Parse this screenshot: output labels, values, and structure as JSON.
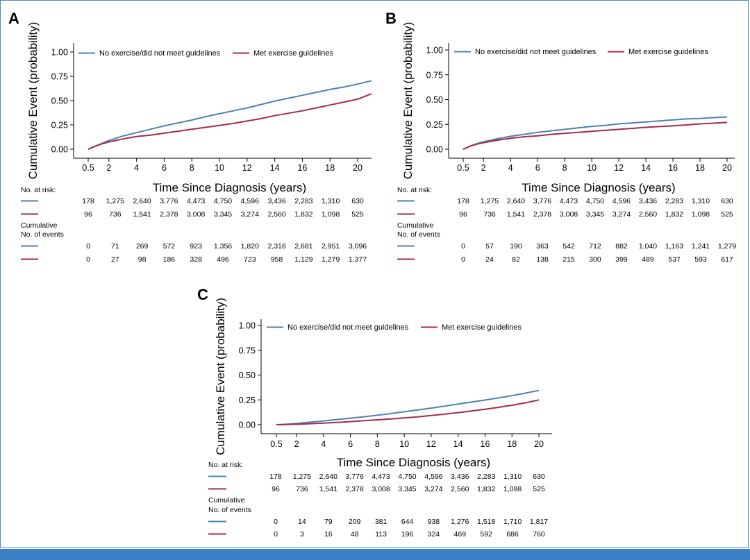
{
  "colors": {
    "series1": "#4a82b6",
    "series2": "#a52a48",
    "frame": "#4d87bd",
    "bar": "#3b7fc4"
  },
  "table_labels": {
    "at_risk": "No. at risk:",
    "cum_line1": "Cumulative",
    "cum_line2": "No. of events"
  },
  "chart_data": [
    {
      "panel": "A",
      "type": "line",
      "ylabel": "Cumulative Event (probability)",
      "xlabel": "Time Since Diagnosis (years)",
      "ylim": [
        0,
        1
      ],
      "xlim": [
        0,
        21
      ],
      "xticks": [
        "0.5",
        "2",
        "4",
        "6",
        "8",
        "10",
        "12",
        "14",
        "16",
        "18",
        "20"
      ],
      "yticks": [
        "0.00",
        "0.25",
        "0.50",
        "0.75",
        "1.00"
      ],
      "legend": "top-left",
      "series": [
        {
          "name": "No exercise/did not meet guidelines",
          "x": [
            0.5,
            1,
            1.5,
            2,
            3,
            4,
            5,
            6,
            7,
            8,
            9,
            10,
            11,
            12,
            13,
            14,
            15,
            16,
            17,
            18,
            19,
            20,
            21
          ],
          "y": [
            0.0,
            0.03,
            0.06,
            0.09,
            0.135,
            0.17,
            0.205,
            0.24,
            0.27,
            0.3,
            0.335,
            0.365,
            0.395,
            0.425,
            0.46,
            0.495,
            0.525,
            0.555,
            0.585,
            0.615,
            0.64,
            0.67,
            0.705
          ]
        },
        {
          "name": "Met exercise guidelines",
          "x": [
            0.5,
            1,
            1.5,
            2,
            3,
            4,
            5,
            6,
            7,
            8,
            9,
            10,
            11,
            12,
            13,
            14,
            15,
            16,
            17,
            18,
            19,
            20,
            21
          ],
          "y": [
            0.0,
            0.03,
            0.055,
            0.075,
            0.105,
            0.13,
            0.145,
            0.165,
            0.185,
            0.205,
            0.225,
            0.245,
            0.265,
            0.29,
            0.315,
            0.345,
            0.37,
            0.395,
            0.425,
            0.455,
            0.485,
            0.515,
            0.57
          ]
        }
      ],
      "at_risk": [
        [
          "178",
          "1,275",
          "2,640",
          "3,776",
          "4,473",
          "4,750",
          "4,596",
          "3,436",
          "2,283",
          "1,310",
          "630"
        ],
        [
          "96",
          "736",
          "1,541",
          "2,378",
          "3,008",
          "3,345",
          "3,274",
          "2,560",
          "1,832",
          "1,098",
          "525"
        ]
      ],
      "cum_events": [
        [
          "0",
          "71",
          "269",
          "572",
          "923",
          "1,356",
          "1,820",
          "2,316",
          "2,681",
          "2,951",
          "3,096"
        ],
        [
          "0",
          "27",
          "98",
          "186",
          "328",
          "496",
          "723",
          "958",
          "1,129",
          "1,279",
          "1,377"
        ]
      ]
    },
    {
      "panel": "B",
      "type": "line",
      "ylabel": "Cumulative Event (probability)",
      "xlabel": "Time Since Diagnosis (years)",
      "ylim": [
        0,
        1
      ],
      "xlim": [
        0,
        20.5
      ],
      "xticks": [
        "0.5",
        "2",
        "4",
        "6",
        "8",
        "10",
        "12",
        "14",
        "16",
        "18",
        "20"
      ],
      "yticks": [
        "0.00",
        "0.25",
        "0.50",
        "0.75",
        "1.00"
      ],
      "legend": "top-left",
      "series": [
        {
          "name": "No exercise/did not meet guidelines",
          "x": [
            0.5,
            1,
            1.5,
            2,
            3,
            4,
            5,
            6,
            7,
            8,
            9,
            10,
            11,
            12,
            13,
            14,
            15,
            16,
            17,
            18,
            19,
            20
          ],
          "y": [
            0.0,
            0.03,
            0.055,
            0.075,
            0.105,
            0.13,
            0.15,
            0.17,
            0.185,
            0.2,
            0.215,
            0.23,
            0.24,
            0.255,
            0.265,
            0.275,
            0.285,
            0.295,
            0.305,
            0.31,
            0.318,
            0.325
          ]
        },
        {
          "name": "Met exercise guidelines",
          "x": [
            0.5,
            1,
            1.5,
            2,
            3,
            4,
            5,
            6,
            7,
            8,
            9,
            10,
            11,
            12,
            13,
            14,
            15,
            16,
            17,
            18,
            19,
            20
          ],
          "y": [
            0.0,
            0.03,
            0.05,
            0.065,
            0.09,
            0.11,
            0.125,
            0.135,
            0.15,
            0.16,
            0.17,
            0.18,
            0.19,
            0.2,
            0.21,
            0.22,
            0.228,
            0.235,
            0.245,
            0.255,
            0.262,
            0.27
          ]
        }
      ],
      "at_risk": [
        [
          "178",
          "1,275",
          "2,640",
          "3,776",
          "4,473",
          "4,750",
          "4,596",
          "3,436",
          "2,283",
          "1,310",
          "630"
        ],
        [
          "96",
          "736",
          "1,541",
          "2,378",
          "3,008",
          "3,345",
          "3,274",
          "2,560",
          "1,832",
          "1,098",
          "525"
        ]
      ],
      "cum_events": [
        [
          "0",
          "57",
          "190",
          "363",
          "542",
          "712",
          "882",
          "1,040",
          "1,163",
          "1,241",
          "1,279"
        ],
        [
          "0",
          "24",
          "82",
          "138",
          "215",
          "300",
          "399",
          "489",
          "537",
          "593",
          "617"
        ]
      ]
    },
    {
      "panel": "C",
      "type": "line",
      "ylabel": "Cumulative Event (probability)",
      "xlabel": "Time Since Diagnosis (years)",
      "ylim": [
        0,
        1
      ],
      "xlim": [
        0,
        21
      ],
      "xticks": [
        "0.5",
        "2",
        "4",
        "6",
        "8",
        "10",
        "12",
        "14",
        "16",
        "18",
        "20"
      ],
      "yticks": [
        "0.00",
        "0.25",
        "0.50",
        "0.75",
        "1.00"
      ],
      "legend": "top-left",
      "series": [
        {
          "name": "No exercise/did not meet guidelines",
          "x": [
            0.5,
            1,
            2,
            3,
            4,
            5,
            6,
            7,
            8,
            9,
            10,
            11,
            12,
            13,
            14,
            15,
            16,
            17,
            18,
            19,
            20
          ],
          "y": [
            0.0,
            0.003,
            0.012,
            0.025,
            0.038,
            0.052,
            0.066,
            0.08,
            0.095,
            0.112,
            0.13,
            0.148,
            0.167,
            0.187,
            0.208,
            0.228,
            0.248,
            0.27,
            0.292,
            0.318,
            0.345
          ]
        },
        {
          "name": "Met exercise guidelines",
          "x": [
            0.5,
            1,
            2,
            3,
            4,
            5,
            6,
            7,
            8,
            9,
            10,
            11,
            12,
            13,
            14,
            15,
            16,
            17,
            18,
            19,
            20
          ],
          "y": [
            0.0,
            0.001,
            0.004,
            0.01,
            0.016,
            0.023,
            0.031,
            0.04,
            0.049,
            0.058,
            0.068,
            0.079,
            0.092,
            0.106,
            0.122,
            0.138,
            0.155,
            0.175,
            0.196,
            0.22,
            0.25
          ]
        }
      ],
      "at_risk": [
        [
          "178",
          "1,275",
          "2,640",
          "3,776",
          "4,473",
          "4,750",
          "4,596",
          "3,436",
          "2,283",
          "1,310",
          "630"
        ],
        [
          "96",
          "736",
          "1,541",
          "2,378",
          "3,008",
          "3,345",
          "3,274",
          "2,560",
          "1,832",
          "1,098",
          "525"
        ]
      ],
      "cum_events": [
        [
          "0",
          "14",
          "79",
          "209",
          "381",
          "644",
          "938",
          "1,276",
          "1,518",
          "1,710",
          "1,817"
        ],
        [
          "0",
          "3",
          "16",
          "48",
          "113",
          "196",
          "324",
          "469",
          "592",
          "686",
          "760"
        ]
      ]
    }
  ]
}
